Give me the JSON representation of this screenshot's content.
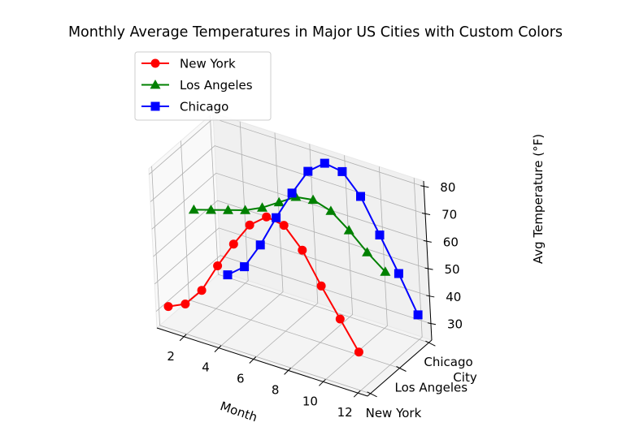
{
  "chart_data": {
    "type": "line-3d",
    "title": "Monthly Average Temperatures in Major US Cities with Custom Colors",
    "xlabel": "Month",
    "ylabel": "City",
    "zlabel": "Avg Temperature (°F)",
    "x_ticks": [
      "2",
      "4",
      "6",
      "8",
      "10",
      "12"
    ],
    "y_ticks": [
      "New York",
      "Los Angeles",
      "Chicago"
    ],
    "z_ticks": [
      "30",
      "40",
      "50",
      "60",
      "70",
      "80"
    ],
    "xlim": [
      0.45,
      12.55
    ],
    "ylim": [
      -0.1,
      2.1
    ],
    "zlim": [
      24,
      82
    ],
    "legend_position": "upper-left",
    "grid": true,
    "series": [
      {
        "name": "New York",
        "color": "#ff0000",
        "marker": "circle",
        "city_index": 0,
        "x": [
          1,
          2,
          3,
          4,
          5,
          6,
          7,
          8,
          9,
          10,
          11,
          12
        ],
        "values": [
          32,
          35,
          42,
          53,
          63,
          72,
          77,
          76,
          69,
          58,
          48,
          38
        ]
      },
      {
        "name": "Los Angeles",
        "color": "#008000",
        "marker": "triangle",
        "city_index": 1,
        "x": [
          1,
          2,
          3,
          4,
          5,
          6,
          7,
          8,
          9,
          10,
          11,
          12
        ],
        "values": [
          58,
          60,
          62,
          64,
          67,
          71,
          75,
          76,
          74,
          69,
          63,
          58
        ]
      },
      {
        "name": "Chicago",
        "color": "#0000ff",
        "marker": "square",
        "city_index": 2,
        "x": [
          1,
          2,
          3,
          4,
          5,
          6,
          7,
          8,
          9,
          10,
          11,
          12
        ],
        "values": [
          25,
          30,
          40,
          52,
          63,
          73,
          78,
          77,
          70,
          58,
          46,
          33
        ]
      }
    ]
  }
}
